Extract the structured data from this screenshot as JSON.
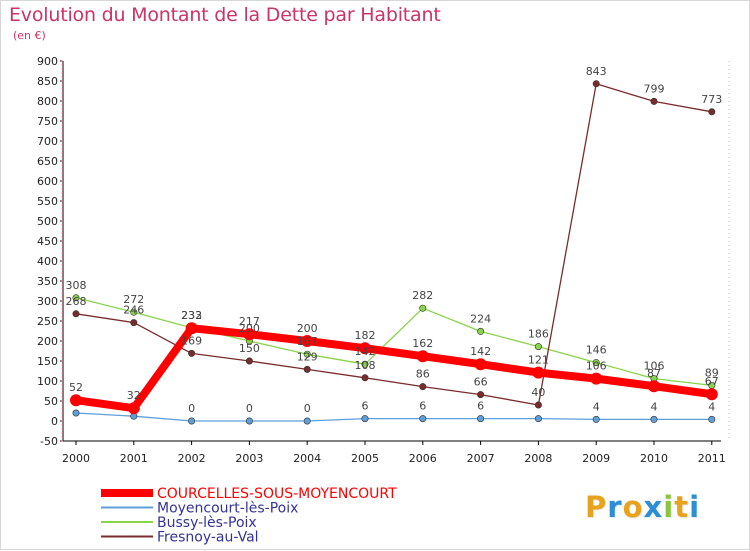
{
  "header": {
    "title": "Evolution du Montant de la Dette par Habitant",
    "subtitle": "(en €)"
  },
  "logo": {
    "text": "Proxiti",
    "letters": [
      "P",
      "r",
      "o",
      "x",
      "i",
      "t",
      "i"
    ],
    "colors": [
      "#e8a21c",
      "#2a8fd4",
      "#e8a21c",
      "#2a8fd4",
      "#8cc43c",
      "#e8a21c",
      "#2a8fd4"
    ]
  },
  "chart_data": {
    "type": "line",
    "title": "Evolution du Montant de la Dette par Habitant",
    "subtitle": "(en €)",
    "xlabel": "",
    "ylabel": "",
    "x": [
      "2000",
      "2001",
      "2002",
      "2003",
      "2004",
      "2005",
      "2006",
      "2007",
      "2008",
      "2009",
      "2010",
      "2011"
    ],
    "ylim": [
      -50,
      900
    ],
    "yticks": [
      -50,
      0,
      50,
      100,
      150,
      200,
      250,
      300,
      350,
      400,
      450,
      500,
      550,
      600,
      650,
      700,
      750,
      800,
      850,
      900
    ],
    "grid": false,
    "legend_position": "bottom-left",
    "series": [
      {
        "name": "COURCELLES-SOUS-MOYENCOURT",
        "color": "#ff0000",
        "emphasis": true,
        "values": [
          52,
          32,
          232,
          217,
          200,
          182,
          162,
          142,
          121,
          106,
          87,
          67
        ],
        "labels": [
          "52",
          "32",
          "232",
          "217",
          "200",
          "182",
          "162",
          "142",
          "121",
          "106",
          "87",
          "67"
        ]
      },
      {
        "name": "Moyencourt-lès-Poix",
        "color": "#5e9fd8",
        "emphasis": false,
        "values": [
          20,
          12,
          0,
          0,
          0,
          6,
          6,
          6,
          6,
          4,
          4,
          4
        ],
        "labels": [
          "",
          "",
          "0",
          "0",
          "0",
          "6",
          "6",
          "6",
          "",
          "4",
          "4",
          "4"
        ]
      },
      {
        "name": "Bussy-lès-Poix",
        "color": "#88d44a",
        "emphasis": false,
        "values": [
          308,
          272,
          233,
          200,
          167,
          142,
          282,
          224,
          186,
          146,
          106,
          89
        ],
        "labels": [
          "308",
          "272",
          "233",
          "200",
          "167",
          "142",
          "282",
          "224",
          "186",
          "146",
          "106",
          "89"
        ]
      },
      {
        "name": "Fresnoy-au-Val",
        "color": "#7a2c2c",
        "emphasis": false,
        "values": [
          268,
          246,
          169,
          150,
          129,
          108,
          86,
          66,
          40,
          843,
          799,
          773
        ],
        "labels": [
          "268",
          "246",
          "169",
          "150",
          "129",
          "108",
          "86",
          "66",
          "40",
          "843",
          "799",
          "773"
        ]
      }
    ]
  }
}
